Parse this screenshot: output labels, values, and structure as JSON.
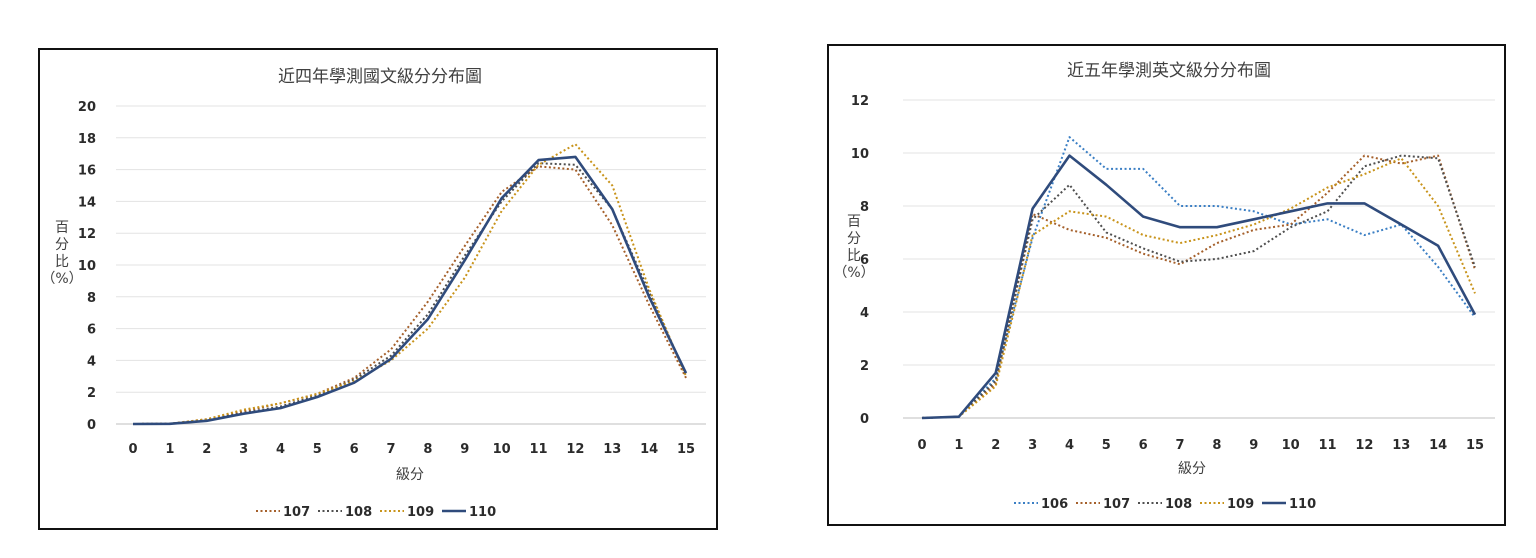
{
  "chart_data": [
    {
      "type": "line",
      "title": "近四年學測國文級分分布圖",
      "xlabel": "級分",
      "ylabel": [
        "百",
        "分",
        "比",
        "（%）"
      ],
      "ylim": [
        0,
        20
      ],
      "yticks": [
        0,
        2,
        4,
        6,
        8,
        10,
        12,
        14,
        16,
        18,
        20
      ],
      "x": [
        0,
        1,
        2,
        3,
        4,
        5,
        6,
        7,
        8,
        9,
        10,
        11,
        12,
        13,
        14,
        15
      ],
      "grid": true,
      "legend": "bottom",
      "series": [
        {
          "name": "107",
          "color": "#a5602b",
          "style": "dotted",
          "values": [
            0,
            0.02,
            0.3,
            0.8,
            1.3,
            1.9,
            2.9,
            4.7,
            7.7,
            11.2,
            14.6,
            16.2,
            16.0,
            12.5,
            7.5,
            2.9
          ]
        },
        {
          "name": "108",
          "color": "#4f4f4f",
          "style": "dotted",
          "values": [
            0,
            0.02,
            0.25,
            0.7,
            1.1,
            1.8,
            2.8,
            4.3,
            6.9,
            10.6,
            14.0,
            16.4,
            16.3,
            13.5,
            8.3,
            3.1
          ]
        },
        {
          "name": "109",
          "color": "#c8931a",
          "style": "dotted",
          "values": [
            0,
            0.02,
            0.3,
            0.9,
            1.3,
            1.9,
            2.7,
            4.0,
            6.0,
            9.2,
            13.4,
            16.3,
            17.6,
            15.0,
            8.5,
            3.0
          ]
        },
        {
          "name": "110",
          "color": "#2f4b7c",
          "style": "solid",
          "values": [
            0,
            0.01,
            0.2,
            0.65,
            1.0,
            1.7,
            2.6,
            4.1,
            6.6,
            10.3,
            14.2,
            16.6,
            16.8,
            13.5,
            8.0,
            3.2
          ]
        }
      ]
    },
    {
      "type": "line",
      "title": "近五年學測英文級分分布圖",
      "xlabel": "級分",
      "ylabel": [
        "百",
        "分",
        "比",
        "（%）"
      ],
      "ylim": [
        0,
        12
      ],
      "yticks": [
        0,
        2,
        4,
        6,
        8,
        10,
        12
      ],
      "x": [
        0,
        1,
        2,
        3,
        4,
        5,
        6,
        7,
        8,
        9,
        10,
        11,
        12,
        13,
        14,
        15
      ],
      "grid": true,
      "legend": "bottom",
      "series": [
        {
          "name": "106",
          "color": "#3b7fc4",
          "style": "dotted",
          "values": [
            0,
            0.05,
            1.5,
            6.8,
            10.6,
            9.4,
            9.4,
            8.0,
            8.0,
            7.8,
            7.3,
            7.5,
            6.9,
            7.3,
            5.7,
            3.8
          ]
        },
        {
          "name": "107",
          "color": "#a5602b",
          "style": "dotted",
          "values": [
            0,
            0.05,
            1.3,
            7.7,
            7.1,
            6.8,
            6.2,
            5.8,
            6.6,
            7.1,
            7.3,
            8.5,
            9.9,
            9.6,
            9.9,
            5.6
          ]
        },
        {
          "name": "108",
          "color": "#4f4f4f",
          "style": "dotted",
          "values": [
            0,
            0.05,
            1.4,
            7.5,
            8.8,
            7.0,
            6.4,
            5.9,
            6.0,
            6.3,
            7.2,
            7.8,
            9.5,
            9.9,
            9.8,
            5.7
          ]
        },
        {
          "name": "109",
          "color": "#c8931a",
          "style": "dotted",
          "values": [
            0,
            0.05,
            1.2,
            6.9,
            7.8,
            7.6,
            6.9,
            6.6,
            6.9,
            7.3,
            7.9,
            8.7,
            9.2,
            9.8,
            8.0,
            4.7
          ]
        },
        {
          "name": "110",
          "color": "#2f4b7c",
          "style": "solid",
          "values": [
            0,
            0.05,
            1.7,
            7.9,
            9.9,
            8.8,
            7.6,
            7.2,
            7.2,
            7.5,
            7.8,
            8.1,
            8.1,
            7.3,
            6.5,
            3.9
          ]
        }
      ]
    }
  ]
}
